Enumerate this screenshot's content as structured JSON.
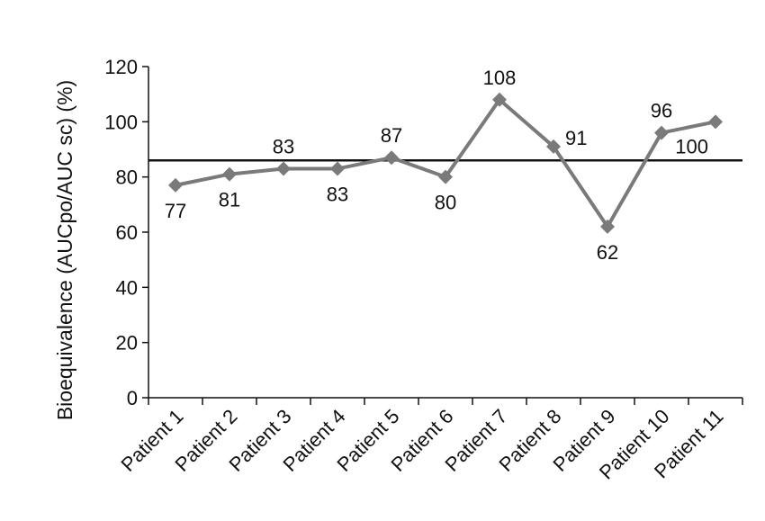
{
  "chart_data": {
    "type": "line",
    "title": "",
    "xlabel": "",
    "ylabel": "Bioequivalence (AUCpo/AUC sc) (%)",
    "categories": [
      "Patient 1",
      "Patient 2",
      "Patient 3",
      "Patient 4",
      "Patient 5",
      "Patient 6",
      "Patient 7",
      "Patient 8",
      "Patient 9",
      "Patient 10",
      "Patient 11"
    ],
    "series": [
      {
        "values": [
          77,
          81,
          83,
          83,
          87,
          80,
          108,
          91,
          62,
          96,
          100
        ]
      }
    ],
    "data_labels": [
      "77",
      "81",
      "83",
      "83",
      "87",
      "80",
      "108",
      "91",
      "62",
      "96",
      "100"
    ],
    "reference_line": {
      "value": 86
    },
    "ylim": [
      0,
      120
    ],
    "yticks": [
      "0",
      "20",
      "40",
      "60",
      "80",
      "100",
      "120"
    ],
    "grid": false,
    "legend": "none",
    "colors": {
      "series": "#7a7a7a",
      "reference": "#111111",
      "axis": "#111111"
    }
  }
}
